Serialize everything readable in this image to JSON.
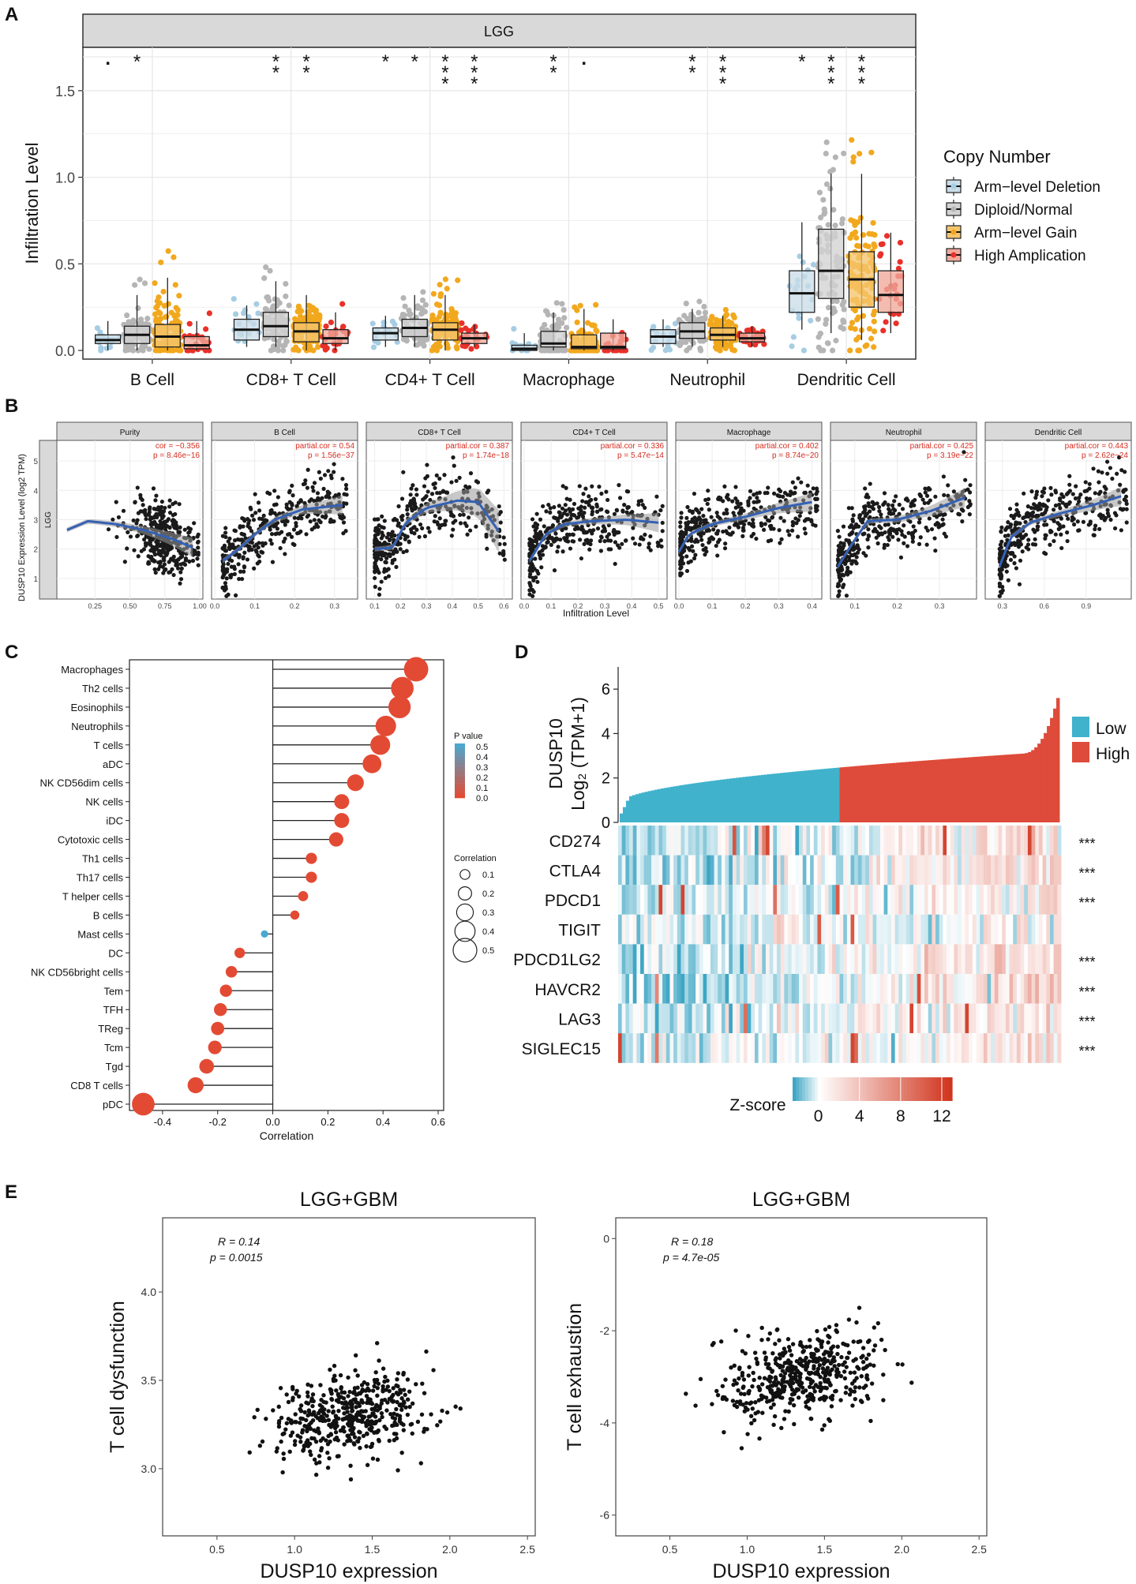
{
  "panel_labels": [
    "A",
    "B",
    "C",
    "D",
    "E"
  ],
  "chart_data": [
    {
      "panel": "A",
      "type": "box",
      "title": "LGG",
      "ylabel": "Infiltration Level",
      "ylim": [
        -0.05,
        1.75
      ],
      "yticks": [
        "0.0",
        "0.5",
        "1.0",
        "1.5"
      ],
      "ytick_values": [
        0,
        0.5,
        1.0,
        1.5
      ],
      "categories": [
        "B Cell",
        "CD8+ T Cell",
        "CD4+ T Cell",
        "Macrophage",
        "Neutrophil",
        "Dendritic Cell"
      ],
      "legend": {
        "title": "Copy Number",
        "entries": [
          "Arm−level Deletion",
          "Diploid/Normal",
          "Arm−level Gain",
          "High Amplication"
        ],
        "colors": [
          "#a6cde3",
          "#b5b5b5",
          "#f2a81d",
          "#e8312a"
        ],
        "fills": [
          "#c9dce8",
          "#d2d2d2",
          "#f5c56e",
          "#f1a99a"
        ]
      },
      "significance": [
        [
          ".",
          "*",
          "",
          ""
        ],
        [
          "",
          "**",
          "**",
          ""
        ],
        [
          "*",
          "*",
          "***",
          "***"
        ],
        [
          "",
          "**",
          ".",
          ""
        ],
        [
          "",
          "**",
          "***",
          ""
        ],
        [
          "*",
          "***",
          "***",
          ""
        ]
      ],
      "boxes": [
        [
          [
            0.0,
            0.04,
            0.06,
            0.09,
            0.17
          ],
          [
            0.0,
            0.04,
            0.09,
            0.14,
            0.32
          ],
          [
            0.0,
            0.02,
            0.08,
            0.15,
            0.42
          ],
          [
            0.0,
            0.01,
            0.03,
            0.08,
            0.17
          ]
        ],
        [
          [
            0.02,
            0.06,
            0.12,
            0.18,
            0.26
          ],
          [
            0.02,
            0.08,
            0.14,
            0.22,
            0.4
          ],
          [
            0.0,
            0.05,
            0.11,
            0.16,
            0.32
          ],
          [
            0.0,
            0.04,
            0.07,
            0.12,
            0.22
          ]
        ],
        [
          [
            0.02,
            0.06,
            0.1,
            0.13,
            0.2
          ],
          [
            0.02,
            0.08,
            0.13,
            0.18,
            0.32
          ],
          [
            0.0,
            0.06,
            0.12,
            0.16,
            0.32
          ],
          [
            0.02,
            0.04,
            0.07,
            0.1,
            0.15
          ]
        ],
        [
          [
            0.0,
            0.0,
            0.01,
            0.03,
            0.1
          ],
          [
            0.0,
            0.02,
            0.04,
            0.11,
            0.22
          ],
          [
            0.0,
            0.01,
            0.02,
            0.09,
            0.24
          ],
          [
            0.0,
            0.01,
            0.02,
            0.1,
            0.18
          ]
        ],
        [
          [
            0.02,
            0.04,
            0.08,
            0.12,
            0.18
          ],
          [
            0.02,
            0.07,
            0.11,
            0.16,
            0.24
          ],
          [
            0.02,
            0.06,
            0.09,
            0.13,
            0.2
          ],
          [
            0.02,
            0.05,
            0.07,
            0.1,
            0.14
          ]
        ],
        [
          [
            0.12,
            0.22,
            0.33,
            0.46,
            0.74
          ],
          [
            0.1,
            0.3,
            0.46,
            0.7,
            1.02
          ],
          [
            0.06,
            0.25,
            0.41,
            0.57,
            1.02
          ],
          [
            0.1,
            0.22,
            0.32,
            0.46,
            0.68
          ]
        ]
      ]
    },
    {
      "panel": "B",
      "type": "scatter",
      "ylabel": "DUSP10 Expression Level (log2 TPM)",
      "xlabel": "Infiltration Level",
      "row_strip": "LGG",
      "yticks": [
        "1",
        "2",
        "3",
        "4",
        "5"
      ],
      "ylim": [
        0.3,
        5.7
      ],
      "facets": [
        {
          "name": "Purity",
          "stat1": "cor = −0.356",
          "stat2": "p = 8.46e−16",
          "xlim": [
            0,
            1
          ],
          "xticks": [
            "0.25",
            "0.50",
            "0.75",
            "1.00"
          ],
          "xtick_values": [
            0.25,
            0.5,
            0.75,
            1.0
          ],
          "curve": [
            [
              0.05,
              2.65
            ],
            [
              0.2,
              2.95
            ],
            [
              0.4,
              2.85
            ],
            [
              0.6,
              2.65
            ],
            [
              0.8,
              2.35
            ],
            [
              0.95,
              2.05
            ]
          ]
        },
        {
          "name": "B Cell",
          "stat1": "partial.cor = 0.54",
          "stat2": "p = 1.56e−37",
          "xlim": [
            0,
            0.35
          ],
          "xticks": [
            "0.0",
            "0.1",
            "0.2",
            "0.3"
          ],
          "xtick_values": [
            0,
            0.1,
            0.2,
            0.3
          ],
          "curve": [
            [
              0.02,
              1.6
            ],
            [
              0.06,
              2.0
            ],
            [
              0.1,
              2.5
            ],
            [
              0.15,
              3.0
            ],
            [
              0.22,
              3.35
            ],
            [
              0.32,
              3.5
            ]
          ]
        },
        {
          "name": "CD8+ T Cell",
          "stat1": "partial.cor = 0.387",
          "stat2": "p = 1.74e−18",
          "xlim": [
            0.08,
            0.62
          ],
          "xticks": [
            "0.1",
            "0.2",
            "0.3",
            "0.4",
            "0.5",
            "0.6"
          ],
          "xtick_values": [
            0.1,
            0.2,
            0.3,
            0.4,
            0.5,
            0.6
          ],
          "curve": [
            [
              0.1,
              2.0
            ],
            [
              0.17,
              2.05
            ],
            [
              0.22,
              2.9
            ],
            [
              0.3,
              3.4
            ],
            [
              0.42,
              3.65
            ],
            [
              0.5,
              3.6
            ],
            [
              0.58,
              2.6
            ]
          ]
        },
        {
          "name": "CD4+ T Cell",
          "stat1": "partial.cor = 0.336",
          "stat2": "p = 5.47e−14",
          "xlim": [
            0,
            0.52
          ],
          "xticks": [
            "0.0",
            "0.1",
            "0.2",
            "0.3",
            "0.4",
            "0.5"
          ],
          "xtick_values": [
            0,
            0.1,
            0.2,
            0.3,
            0.4,
            0.5
          ],
          "curve": [
            [
              0.02,
              1.6
            ],
            [
              0.08,
              2.5
            ],
            [
              0.15,
              2.85
            ],
            [
              0.25,
              2.95
            ],
            [
              0.38,
              3.0
            ],
            [
              0.5,
              2.9
            ]
          ]
        },
        {
          "name": "Macrophage",
          "stat1": "partial.cor = 0.402",
          "stat2": "p = 8.74e−20",
          "xlim": [
            0,
            0.42
          ],
          "xticks": [
            "0.0",
            "0.1",
            "0.2",
            "0.3",
            "0.4"
          ],
          "xtick_values": [
            0,
            0.1,
            0.2,
            0.3,
            0.4
          ],
          "curve": [
            [
              0.0,
              1.9
            ],
            [
              0.03,
              2.5
            ],
            [
              0.1,
              2.85
            ],
            [
              0.2,
              3.1
            ],
            [
              0.3,
              3.4
            ],
            [
              0.4,
              3.6
            ]
          ]
        },
        {
          "name": "Neutrophil",
          "stat1": "partial.cor = 0.425",
          "stat2": "p = 3.19e−22",
          "xlim": [
            0.05,
            0.38
          ],
          "xticks": [
            "0.1",
            "0.2",
            "0.3"
          ],
          "xtick_values": [
            0.1,
            0.2,
            0.3
          ],
          "curve": [
            [
              0.06,
              1.4
            ],
            [
              0.09,
              2.1
            ],
            [
              0.13,
              2.95
            ],
            [
              0.2,
              3.0
            ],
            [
              0.28,
              3.3
            ],
            [
              0.36,
              3.75
            ]
          ]
        },
        {
          "name": "Dendritic Cell",
          "stat1": "partial.cor = 0.443",
          "stat2": "p = 2.62e−24",
          "xlim": [
            0.2,
            1.2
          ],
          "xticks": [
            "0.3",
            "0.6",
            "0.9"
          ],
          "xtick_values": [
            0.3,
            0.6,
            0.9
          ],
          "curve": [
            [
              0.28,
              1.4
            ],
            [
              0.36,
              2.4
            ],
            [
              0.5,
              2.9
            ],
            [
              0.7,
              3.2
            ],
            [
              0.95,
              3.5
            ],
            [
              1.15,
              3.8
            ]
          ]
        }
      ]
    },
    {
      "panel": "C",
      "type": "lollipop",
      "xlabel": "Correlation",
      "xlim": [
        -0.52,
        0.62
      ],
      "xticks": [
        "-0.4",
        "-0.2",
        "0.0",
        "0.2",
        "0.4",
        "0.6"
      ],
      "xtick_values": [
        -0.4,
        -0.2,
        0.0,
        0.2,
        0.4,
        0.6
      ],
      "categories": [
        "Macrophages",
        "Th2 cells",
        "Eosinophils",
        "Neutrophils",
        "T cells",
        "aDC",
        "NK CD56dim cells",
        "NK cells",
        "iDC",
        "Cytotoxic cells",
        "Th1 cells",
        "Th17 cells",
        "T helper cells",
        "B cells",
        "Mast cells",
        "DC",
        "NK CD56bright cells",
        "Tem",
        "TFH",
        "TReg",
        "Tcm",
        "Tgd",
        "CD8 T cells",
        "pDC"
      ],
      "values": [
        0.52,
        0.47,
        0.46,
        0.41,
        0.39,
        0.36,
        0.3,
        0.25,
        0.25,
        0.23,
        0.14,
        0.14,
        0.11,
        0.08,
        -0.03,
        -0.12,
        -0.15,
        -0.17,
        -0.19,
        -0.2,
        -0.21,
        -0.24,
        -0.28,
        -0.47
      ],
      "p_values": [
        0,
        0,
        0,
        0,
        0,
        0,
        0,
        0,
        0,
        0,
        0,
        0,
        0,
        0,
        0.5,
        0,
        0,
        0,
        0,
        0,
        0,
        0,
        0,
        0
      ],
      "legend_p": {
        "title": "P value",
        "labels": [
          "0.5",
          "0.4",
          "0.3",
          "0.2",
          "0.1",
          "0.0"
        ]
      },
      "legend_size": {
        "title": "Correlation",
        "labels": [
          "0.1",
          "0.2",
          "0.3",
          "0.4",
          "0.5"
        ],
        "values": [
          0.1,
          0.2,
          0.3,
          0.4,
          0.5
        ]
      },
      "colors": {
        "low_p": "#e34a33",
        "high_p": "#4aa8d0"
      }
    },
    {
      "panel": "D",
      "type": "heatmap",
      "ylabel_line1": "DUSP10",
      "ylabel_line2": "Log₂ (TPM+1)",
      "yticks": [
        "0",
        "2",
        "4",
        "6"
      ],
      "ytick_values": [
        0,
        2,
        4,
        6
      ],
      "ylim": [
        0,
        7
      ],
      "groups": [
        {
          "name": "Low",
          "color": "#40b2cc"
        },
        {
          "name": "High",
          "color": "#de4b3a"
        }
      ],
      "genes": [
        "CD274",
        "CTLA4",
        "PDCD1",
        "TIGIT",
        "PDCD1LG2",
        "HAVCR2",
        "LAG3",
        "SIGLEC15"
      ],
      "significance": [
        "***",
        "***",
        "***",
        "",
        "***",
        "***",
        "***",
        "***"
      ],
      "gene_trend": [
        0.5,
        0.5,
        0.35,
        0.05,
        0.6,
        0.75,
        0.45,
        0.4
      ],
      "scale": {
        "title": "Z-score",
        "labels": [
          "0",
          "4",
          "8",
          "12"
        ],
        "values": [
          0,
          4,
          8,
          12
        ],
        "min": -2.5,
        "max": 13
      }
    },
    {
      "panel": "E1",
      "type": "scatter",
      "title": "LGG+GBM",
      "xlabel": "DUSP10 expression",
      "ylabel": "T cell dysfunction",
      "stat_r": "R = 0.14",
      "stat_p": "p = 0.0015",
      "xlim": [
        0.15,
        2.55
      ],
      "ylim": [
        2.62,
        4.42
      ],
      "xticks": [
        "0.5",
        "1.0",
        "1.5",
        "2.0",
        "2.5"
      ],
      "xtick_values": [
        0.5,
        1.0,
        1.5,
        2.0,
        2.5
      ],
      "yticks": [
        "3.0",
        "3.5",
        "4.0"
      ],
      "ytick_values": [
        3.0,
        3.5,
        4.0
      ],
      "center": [
        1.35,
        3.3
      ],
      "slope": 0.12
    },
    {
      "panel": "E2",
      "type": "scatter",
      "title": "LGG+GBM",
      "xlabel": "DUSP10 expression",
      "ylabel": "T cell exhaustion",
      "stat_r": "R = 0.18",
      "stat_p": "p = 4.7e-05",
      "xlim": [
        0.15,
        2.55
      ],
      "ylim": [
        -6.45,
        0.45
      ],
      "xticks": [
        "0.5",
        "1.0",
        "1.5",
        "2.0",
        "2.5"
      ],
      "xtick_values": [
        0.5,
        1.0,
        1.5,
        2.0,
        2.5
      ],
      "yticks": [
        "-6",
        "-4",
        "-2",
        "0"
      ],
      "ytick_values": [
        -6,
        -4,
        -2,
        0
      ],
      "center": [
        1.35,
        -3.0
      ],
      "slope": 0.55
    }
  ]
}
